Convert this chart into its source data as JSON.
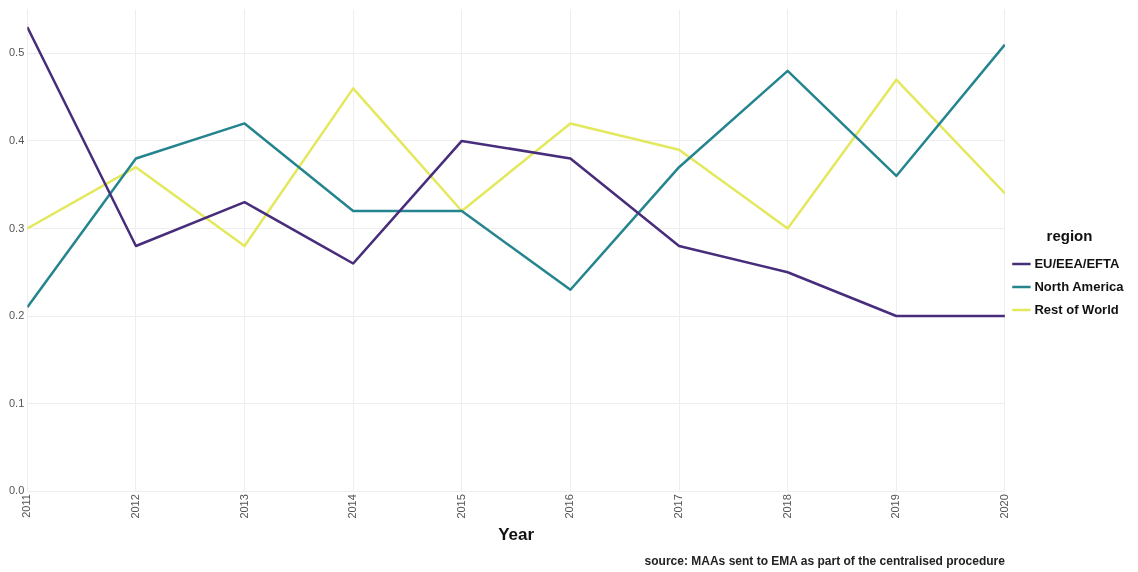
{
  "chart_data": {
    "type": "line",
    "xlabel": "Year",
    "legend_title": "region",
    "legend": "right",
    "grid": true,
    "marker": "none",
    "x": [
      2011,
      2012,
      2013,
      2014,
      2015,
      2016,
      2017,
      2018,
      2019,
      2020
    ],
    "xlim": [
      2011,
      2020
    ],
    "xticks": [
      2011,
      2012,
      2013,
      2014,
      2015,
      2016,
      2017,
      2018,
      2019,
      2020
    ],
    "ylim": [
      0,
      0.55
    ],
    "yticks": [
      {
        "value": 0,
        "label": "0.0"
      },
      0.1,
      0.2,
      0.3,
      0.4,
      0.5
    ],
    "series": [
      {
        "name": "EU/EEA/EFTA",
        "color": "#472d7b",
        "values": [
          0.53,
          0.28,
          0.33,
          0.26,
          0.4,
          0.38,
          0.28,
          0.25,
          0.2,
          0.2
        ]
      },
      {
        "name": "North America",
        "color": "#25858e",
        "values": [
          0.21,
          0.38,
          0.42,
          0.32,
          0.32,
          0.23,
          0.37,
          0.48,
          0.36,
          0.51
        ]
      },
      {
        "name": "Rest of World",
        "color": "#e3e85c",
        "values": [
          0.3,
          0.37,
          0.28,
          0.46,
          0.32,
          0.42,
          0.39,
          0.3,
          0.47,
          0.34
        ]
      }
    ],
    "annotations": [
      "source: MAAs sent to EMA as part of the centralised procedure"
    ]
  }
}
